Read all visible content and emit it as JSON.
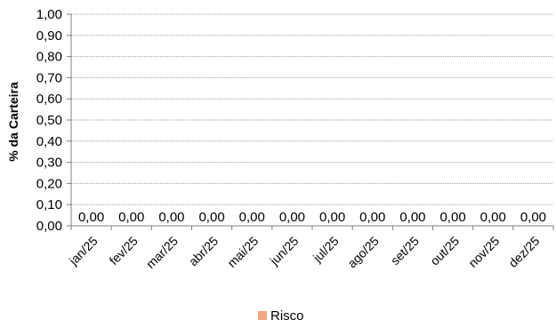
{
  "chart_data": {
    "type": "bar",
    "title": "",
    "xlabel": "",
    "ylabel": "% da Carteira",
    "ylim": [
      0,
      1
    ],
    "y_ticks": [
      "0,00",
      "0,10",
      "0,20",
      "0,30",
      "0,40",
      "0,50",
      "0,60",
      "0,70",
      "0,80",
      "0,90",
      "1,00"
    ],
    "grid": true,
    "legend_position": "bottom",
    "categories": [
      "jan/25",
      "fev/25",
      "mar/25",
      "abr/25",
      "mai/25",
      "jun/25",
      "jul/25",
      "ago/25",
      "set/25",
      "out/25",
      "nov/25",
      "dez/25"
    ],
    "series": [
      {
        "name": "Risco",
        "color": "#F4A582",
        "values": [
          0,
          0,
          0,
          0,
          0,
          0,
          0,
          0,
          0,
          0,
          0,
          0
        ],
        "labels": [
          "0,00",
          "0,00",
          "0,00",
          "0,00",
          "0,00",
          "0,00",
          "0,00",
          "0,00",
          "0,00",
          "0,00",
          "0,00",
          "0,00"
        ]
      }
    ]
  }
}
